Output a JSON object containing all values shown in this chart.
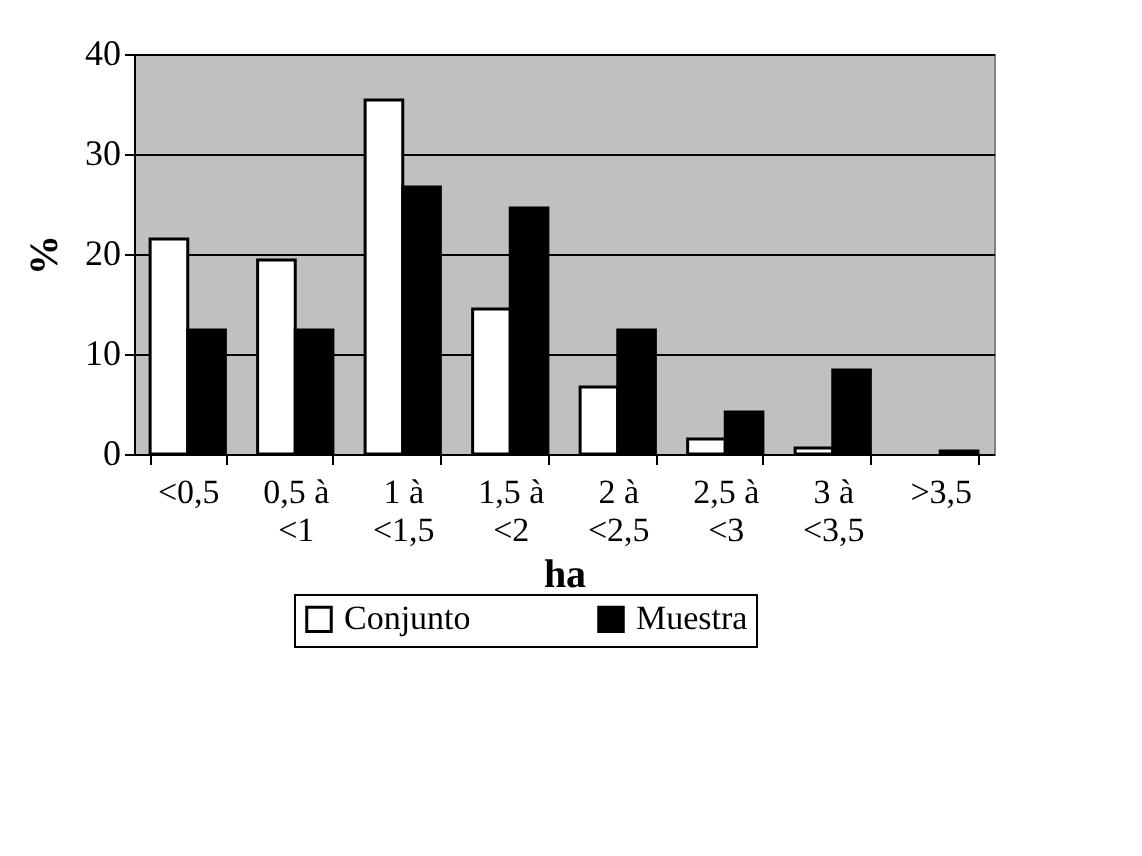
{
  "chart_data": {
    "type": "bar",
    "xlabel": "ha",
    "ylabel": "%",
    "categories": [
      "<0,5",
      "0,5 à <1",
      "1 à <1,5",
      "1,5 à <2",
      "2 à <2,5",
      "2,5 à <3",
      "3 à <3,5",
      ">3,5"
    ],
    "series": [
      {
        "name": "Conjunto",
        "color": "#ffffff",
        "values": [
          21.5,
          19.4,
          35.4,
          14.5,
          6.7,
          1.5,
          0.6,
          null
        ]
      },
      {
        "name": "Muestra",
        "color": "#000000",
        "values": [
          12.4,
          12.4,
          26.7,
          24.6,
          12.4,
          4.2,
          8.4,
          0.3
        ]
      }
    ],
    "ylim": [
      0,
      40
    ],
    "yticks": [
      0,
      10,
      20,
      30,
      40
    ],
    "grid": "y",
    "legend": "bottom"
  }
}
